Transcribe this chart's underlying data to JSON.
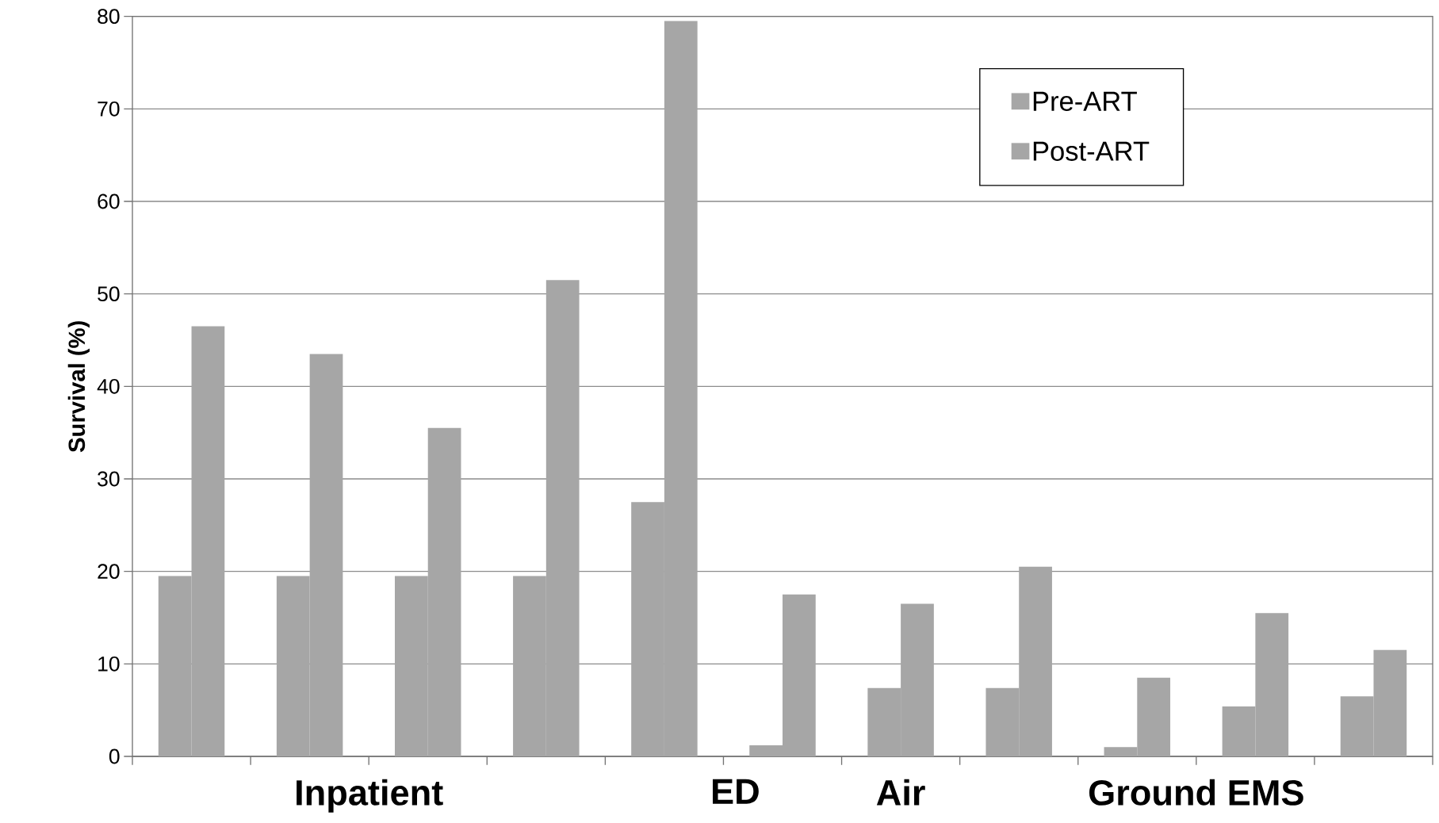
{
  "chart_data": {
    "type": "bar",
    "ylabel": "Survival (%)",
    "categories": [
      null,
      null,
      null,
      null,
      null,
      null,
      null,
      null,
      null,
      null,
      null
    ],
    "series": [
      {
        "name": "Pre-ART",
        "color": "#a6a6a6",
        "values": [
          19.5,
          19.5,
          19.5,
          19.5,
          27.5,
          1.2,
          7.4,
          7.4,
          1.0,
          5.4,
          6.5
        ]
      },
      {
        "name": "Post-ART",
        "color": "#a6a6a6",
        "values": [
          46.5,
          43.5,
          35.5,
          51.5,
          79.5,
          17.5,
          16.5,
          20.5,
          8.5,
          15.5,
          11.5
        ]
      }
    ],
    "ylim": [
      0,
      80
    ],
    "yticks": [
      0,
      10,
      20,
      30,
      40,
      50,
      60,
      70,
      80
    ],
    "grid": "y",
    "legend": "top right",
    "annotations": [
      "Inpatient",
      "ED",
      "Air",
      "Ground EMS"
    ]
  }
}
